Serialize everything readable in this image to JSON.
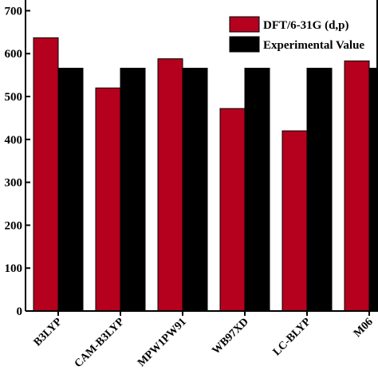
{
  "chart_data": {
    "type": "bar",
    "categories": [
      "B3LYP",
      "CAM-B3LYP",
      "MPW1PW91",
      "WB97XD",
      "LC-BLYP",
      "M06"
    ],
    "series": [
      {
        "name": "DFT/6-31G (d,p)",
        "values": [
          637,
          520,
          588,
          472,
          420,
          583
        ],
        "color": "#b5001e"
      },
      {
        "name": "Experimental Value",
        "values": [
          566,
          566,
          566,
          566,
          566,
          566
        ],
        "color": "#000000"
      }
    ],
    "y_ticks": [
      0,
      100,
      200,
      300,
      400,
      500,
      600,
      700
    ],
    "y_tick_labels": [
      "0",
      "100",
      "200",
      "300",
      "400",
      "500",
      "600",
      "700"
    ],
    "ylim": [
      0,
      725
    ],
    "legend_position": "top-right",
    "grid": false
  }
}
